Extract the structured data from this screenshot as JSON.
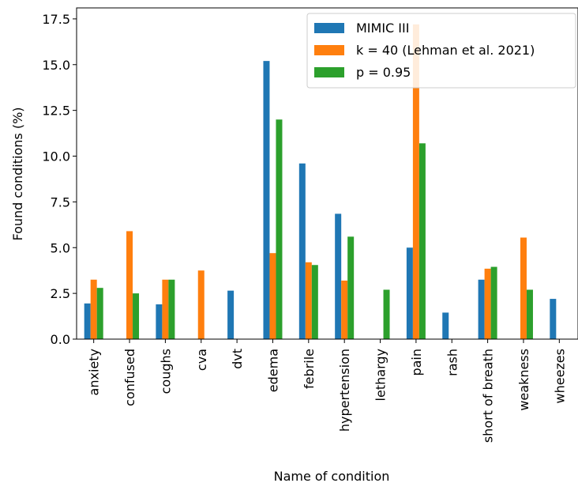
{
  "chart_data": {
    "type": "bar",
    "xlabel": "Name of condition",
    "ylabel": "Found conditions (%)",
    "ylim": [
      0,
      18.1
    ],
    "yticks": [
      "0.0",
      "2.5",
      "5.0",
      "7.5",
      "10.0",
      "12.5",
      "15.0",
      "17.5"
    ],
    "ytick_values": [
      0,
      2.5,
      5.0,
      7.5,
      10.0,
      12.5,
      15.0,
      17.5
    ],
    "categories": [
      "anxiety",
      "confused",
      "coughs",
      "cva",
      "dvt",
      "edema",
      "febrile",
      "hypertension",
      "lethargy",
      "pain",
      "rash",
      "short of breath",
      "weakness",
      "wheezes"
    ],
    "series": [
      {
        "name": "MIMIC III",
        "color": "#1f77b4",
        "values": [
          1.95,
          0,
          1.9,
          0,
          2.65,
          15.2,
          9.6,
          6.85,
          0,
          5.0,
          1.45,
          3.25,
          0,
          2.2
        ]
      },
      {
        "name": "k = 40 (Lehman et al. 2021)",
        "color": "#ff7f0e",
        "values": [
          3.25,
          5.9,
          3.25,
          3.75,
          0,
          4.7,
          4.2,
          3.2,
          0,
          17.2,
          0,
          3.85,
          5.55,
          0
        ]
      },
      {
        "name": "p = 0.95",
        "color": "#2ca02c",
        "values": [
          2.8,
          2.5,
          3.25,
          0,
          0,
          12.0,
          4.05,
          5.6,
          2.7,
          10.7,
          0,
          3.95,
          2.7,
          0
        ]
      }
    ],
    "legend": "top-right",
    "grid": false
  }
}
